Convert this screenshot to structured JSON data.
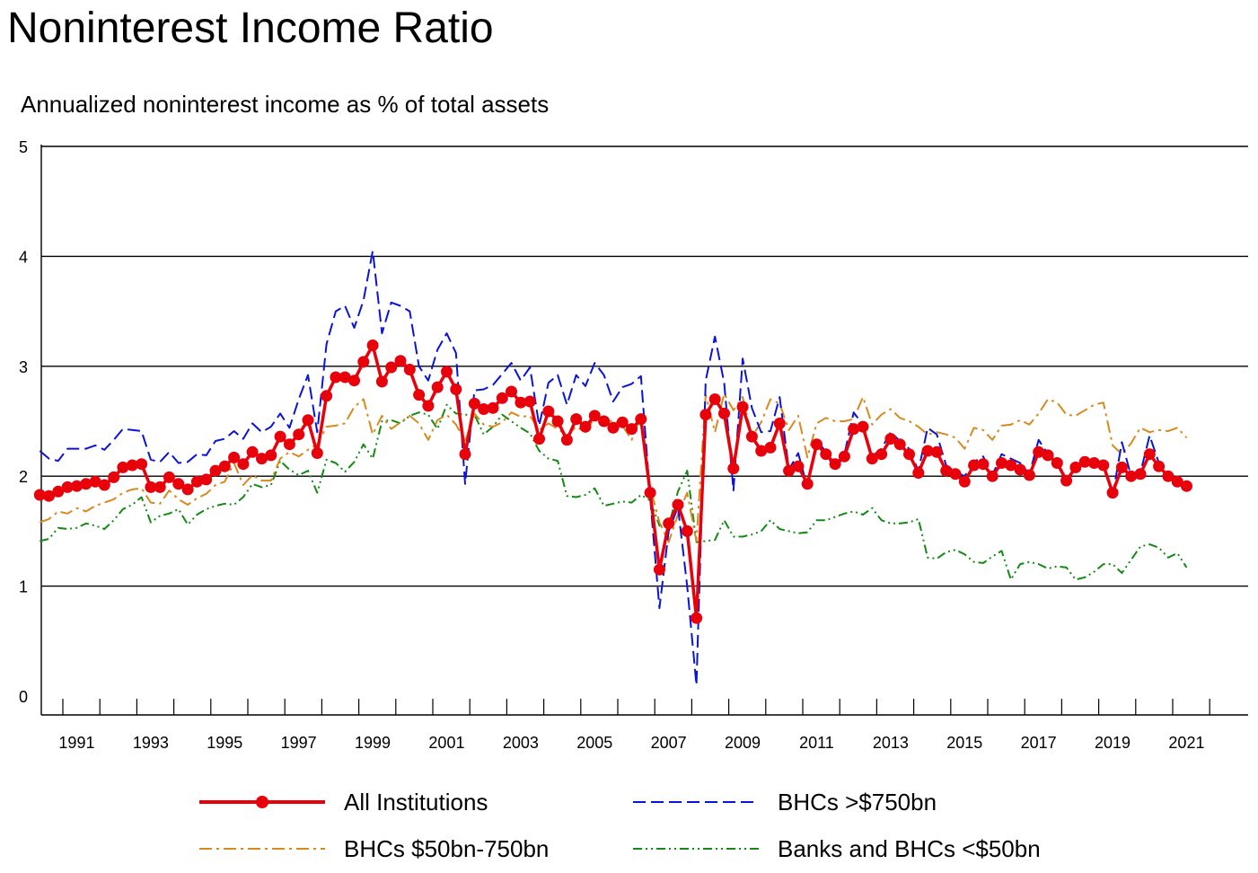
{
  "chart_data": {
    "type": "line",
    "title": "Noninterest Income Ratio",
    "subtitle": "Annualized noninterest income as % of total assets",
    "xlabel": "",
    "ylabel": "",
    "x_start": "1990Q1",
    "frequency": "quarterly",
    "xlim": [
      1990.5,
      2021.75
    ],
    "ylim": [
      0,
      5
    ],
    "yticks": [
      0,
      1,
      2,
      3,
      4,
      5
    ],
    "xticks": [
      1991,
      1993,
      1995,
      1997,
      1999,
      2001,
      2003,
      2005,
      2007,
      2009,
      2011,
      2013,
      2015,
      2017,
      2019,
      2021
    ],
    "grid": "horizontal",
    "legend_position": "bottom",
    "series": [
      {
        "name": "All Institutions",
        "color": "#e8000b",
        "style": "solid-markers",
        "values": [
          1.83,
          1.82,
          1.86,
          1.9,
          1.91,
          1.93,
          1.95,
          1.92,
          1.99,
          2.08,
          2.1,
          2.11,
          1.9,
          1.9,
          1.99,
          1.93,
          1.88,
          1.95,
          1.97,
          2.05,
          2.09,
          2.17,
          2.11,
          2.22,
          2.16,
          2.19,
          2.36,
          2.29,
          2.38,
          2.51,
          2.21,
          2.73,
          2.9,
          2.9,
          2.87,
          3.04,
          3.19,
          2.86,
          2.99,
          3.05,
          2.97,
          2.74,
          2.64,
          2.81,
          2.95,
          2.79,
          2.2,
          2.66,
          2.61,
          2.62,
          2.71,
          2.77,
          2.67,
          2.68,
          2.34,
          2.59,
          2.5,
          2.33,
          2.52,
          2.45,
          2.55,
          2.5,
          2.44,
          2.49,
          2.43,
          2.52,
          1.85,
          1.15,
          1.57,
          1.74,
          1.5,
          0.71,
          2.56,
          2.7,
          2.57,
          2.07,
          2.63,
          2.36,
          2.23,
          2.26,
          2.48,
          2.05,
          2.09,
          1.93,
          2.29,
          2.2,
          2.11,
          2.18,
          2.43,
          2.45,
          2.16,
          2.2,
          2.34,
          2.29,
          2.2,
          2.03,
          2.23,
          2.22,
          2.05,
          2.02,
          1.95,
          2.1,
          2.11,
          2.0,
          2.12,
          2.1,
          2.06,
          2.01,
          2.22,
          2.19,
          2.12,
          1.96,
          2.08,
          2.13,
          2.12,
          2.1,
          1.85,
          2.08,
          2.0,
          2.02,
          2.2,
          2.09,
          2.0,
          1.95,
          1.91
        ]
      },
      {
        "name": "BHCs >$750bn",
        "color": "#0a14d8",
        "style": "dashed",
        "values": [
          2.23,
          2.16,
          2.14,
          2.25,
          2.25,
          2.25,
          2.28,
          2.24,
          2.33,
          2.43,
          2.42,
          2.41,
          2.15,
          2.13,
          2.22,
          2.12,
          2.13,
          2.2,
          2.19,
          2.32,
          2.34,
          2.41,
          2.34,
          2.48,
          2.4,
          2.45,
          2.57,
          2.44,
          2.7,
          2.92,
          2.4,
          3.2,
          3.5,
          3.55,
          3.35,
          3.6,
          4.05,
          3.3,
          3.58,
          3.55,
          3.5,
          3.0,
          2.87,
          3.15,
          3.3,
          3.12,
          1.93,
          2.78,
          2.79,
          2.83,
          2.93,
          3.03,
          2.87,
          2.99,
          2.46,
          2.85,
          2.92,
          2.65,
          2.92,
          2.82,
          3.03,
          2.92,
          2.68,
          2.81,
          2.84,
          2.91,
          1.8,
          0.8,
          1.5,
          1.72,
          1.0,
          0.1,
          2.87,
          3.27,
          2.85,
          1.87,
          3.07,
          2.62,
          2.4,
          2.41,
          2.72,
          2.06,
          2.21,
          1.9,
          2.33,
          2.22,
          2.05,
          2.2,
          2.58,
          2.47,
          2.18,
          2.25,
          2.4,
          2.32,
          2.25,
          2.05,
          2.44,
          2.38,
          2.1,
          2.04,
          2.0,
          2.13,
          2.18,
          2.01,
          2.2,
          2.16,
          2.12,
          2.02,
          2.33,
          2.2,
          2.16,
          1.93,
          2.09,
          2.13,
          2.14,
          2.12,
          1.82,
          2.31,
          2.0,
          2.03,
          2.37,
          2.12,
          2.03,
          1.95,
          1.91
        ]
      },
      {
        "name": "BHCs $50bn-750bn",
        "color": "#d98a1e",
        "style": "dashdot",
        "values": [
          1.58,
          1.61,
          1.68,
          1.66,
          1.71,
          1.68,
          1.73,
          1.76,
          1.79,
          1.85,
          1.88,
          1.89,
          1.76,
          1.75,
          1.87,
          1.79,
          1.74,
          1.8,
          1.84,
          1.92,
          1.95,
          2.12,
          1.92,
          2.01,
          1.96,
          1.96,
          2.16,
          2.22,
          2.18,
          2.24,
          2.29,
          2.45,
          2.46,
          2.48,
          2.63,
          2.7,
          2.38,
          2.55,
          2.43,
          2.49,
          2.55,
          2.48,
          2.33,
          2.51,
          2.56,
          2.47,
          2.32,
          2.57,
          2.47,
          2.45,
          2.49,
          2.58,
          2.54,
          2.55,
          2.42,
          2.48,
          2.43,
          2.37,
          2.45,
          2.4,
          2.53,
          2.48,
          2.51,
          2.46,
          2.33,
          2.55,
          1.9,
          1.58,
          1.4,
          1.65,
          1.85,
          1.41,
          2.74,
          2.4,
          2.75,
          2.6,
          2.72,
          2.36,
          2.49,
          2.7,
          2.66,
          2.42,
          2.55,
          2.17,
          2.48,
          2.53,
          2.5,
          2.5,
          2.52,
          2.72,
          2.47,
          2.56,
          2.61,
          2.53,
          2.5,
          2.45,
          2.38,
          2.4,
          2.38,
          2.35,
          2.25,
          2.44,
          2.42,
          2.33,
          2.46,
          2.47,
          2.51,
          2.47,
          2.57,
          2.7,
          2.67,
          2.56,
          2.55,
          2.6,
          2.65,
          2.67,
          2.28,
          2.2,
          2.3,
          2.44,
          2.4,
          2.42,
          2.41,
          2.44,
          2.35
        ]
      },
      {
        "name": "Banks and BHCs <$50bn",
        "color": "#138a13",
        "style": "dashdotdot",
        "values": [
          1.41,
          1.43,
          1.53,
          1.52,
          1.53,
          1.57,
          1.55,
          1.52,
          1.6,
          1.7,
          1.74,
          1.81,
          1.58,
          1.64,
          1.66,
          1.7,
          1.56,
          1.65,
          1.7,
          1.73,
          1.75,
          1.74,
          1.81,
          1.93,
          1.9,
          1.92,
          2.14,
          2.06,
          2.01,
          2.05,
          1.85,
          2.15,
          2.12,
          2.04,
          2.13,
          2.29,
          2.16,
          2.5,
          2.51,
          2.48,
          2.55,
          2.58,
          2.56,
          2.43,
          2.65,
          2.57,
          2.56,
          2.56,
          2.38,
          2.45,
          2.56,
          2.5,
          2.44,
          2.39,
          2.23,
          2.16,
          2.14,
          1.82,
          1.81,
          1.83,
          1.89,
          1.73,
          1.75,
          1.77,
          1.76,
          1.83,
          1.78,
          1.55,
          1.55,
          1.86,
          2.05,
          1.4,
          1.41,
          1.42,
          1.6,
          1.45,
          1.45,
          1.47,
          1.5,
          1.6,
          1.52,
          1.5,
          1.48,
          1.49,
          1.6,
          1.6,
          1.63,
          1.66,
          1.68,
          1.65,
          1.71,
          1.6,
          1.57,
          1.57,
          1.58,
          1.61,
          1.26,
          1.25,
          1.31,
          1.33,
          1.29,
          1.22,
          1.21,
          1.27,
          1.32,
          1.06,
          1.2,
          1.22,
          1.2,
          1.16,
          1.18,
          1.17,
          1.06,
          1.08,
          1.13,
          1.2,
          1.2,
          1.12,
          1.24,
          1.36,
          1.38,
          1.35,
          1.26,
          1.3,
          1.17
        ]
      }
    ]
  }
}
